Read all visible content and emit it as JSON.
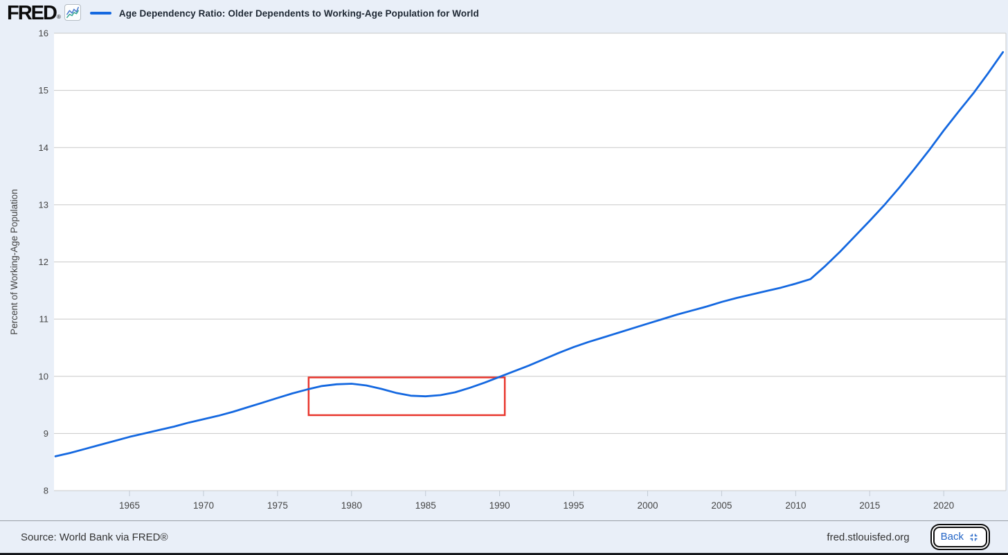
{
  "header": {
    "logo_text": "FRED",
    "logo_reg": "®",
    "series_title": "Age Dependency Ratio: Older Dependents to Working-Age Population for World"
  },
  "footer": {
    "source": "Source: World Bank via FRED®",
    "site": "fred.stlouisfed.org",
    "back_label": "Back"
  },
  "colors": {
    "page_bg": "#e9eff8",
    "plot_bg": "#ffffff",
    "grid": "#c8c8c8",
    "plot_edge": "#cccccc",
    "tick": "#c2cad4",
    "series": "#1468e0",
    "annotation": "#e8362d",
    "axis_text": "#444444",
    "title_text": "#1d2733",
    "footer_text": "#333333",
    "back_blue": "#2264c6",
    "sparkline_blue": "#4a7bd0",
    "sparkline_teal": "#37a794"
  },
  "chart_data": {
    "type": "line",
    "title": "Age Dependency Ratio: Older Dependents to Working-Age Population for World",
    "xlabel": "",
    "ylabel": "Percent of Working-Age Population",
    "ylim": [
      8,
      16
    ],
    "xlim": [
      1959.9,
      2024.2
    ],
    "y_ticks": [
      8,
      9,
      10,
      11,
      12,
      13,
      14,
      15,
      16
    ],
    "x_ticks": [
      1965,
      1970,
      1975,
      1980,
      1985,
      1990,
      1995,
      2000,
      2005,
      2010,
      2015,
      2020
    ],
    "grid": "horizontal",
    "legend_position": "top-left-beside-title",
    "series": [
      {
        "name": "Age Dependency Ratio: Older Dependents to Working-Age Population for World",
        "color": "#1468e0",
        "x": [
          1960,
          1961,
          1962,
          1963,
          1964,
          1965,
          1966,
          1967,
          1968,
          1969,
          1970,
          1971,
          1972,
          1973,
          1974,
          1975,
          1976,
          1977,
          1978,
          1979,
          1980,
          1981,
          1982,
          1983,
          1984,
          1985,
          1986,
          1987,
          1988,
          1989,
          1990,
          1991,
          1992,
          1993,
          1994,
          1995,
          1996,
          1997,
          1998,
          1999,
          2000,
          2001,
          2002,
          2003,
          2004,
          2005,
          2006,
          2007,
          2008,
          2009,
          2010,
          2011,
          2012,
          2013,
          2014,
          2015,
          2016,
          2017,
          2018,
          2019,
          2020,
          2021,
          2022,
          2023,
          2024
        ],
        "values": [
          8.6,
          8.66,
          8.73,
          8.8,
          8.87,
          8.94,
          9.0,
          9.06,
          9.12,
          9.19,
          9.25,
          9.31,
          9.38,
          9.46,
          9.54,
          9.62,
          9.7,
          9.77,
          9.83,
          9.86,
          9.87,
          9.84,
          9.78,
          9.71,
          9.66,
          9.65,
          9.67,
          9.72,
          9.8,
          9.89,
          9.99,
          10.09,
          10.19,
          10.3,
          10.41,
          10.51,
          10.6,
          10.68,
          10.76,
          10.84,
          10.92,
          11.0,
          11.08,
          11.15,
          11.22,
          11.3,
          11.37,
          11.43,
          11.49,
          11.55,
          11.62,
          11.7,
          11.93,
          12.18,
          12.45,
          12.72,
          13.0,
          13.3,
          13.62,
          13.95,
          14.3,
          14.63,
          14.95,
          15.3,
          15.67
        ]
      }
    ],
    "annotations": [
      {
        "type": "rect",
        "label": "highlight-1977-1990-dip",
        "x1": 1977.1,
        "x2": 1990.35,
        "y1": 9.32,
        "y2": 9.98,
        "color": "#e8362d"
      }
    ]
  }
}
